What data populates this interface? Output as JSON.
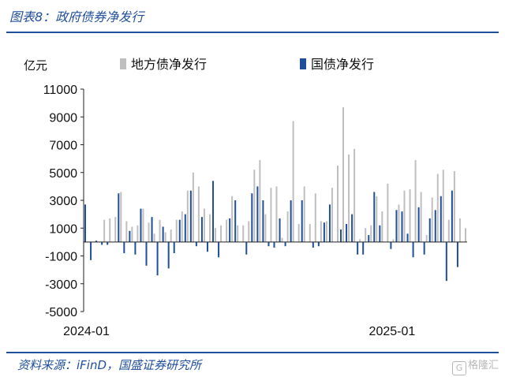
{
  "header": {
    "title": "图表8：政府债券净发行"
  },
  "footer": {
    "source": "资料来源：iFinD，国盛证券研究所",
    "watermark": "格隆汇"
  },
  "colors": {
    "local": "#bfbfbf",
    "national": "#1f4e9a",
    "accent": "#1f4e9a"
  },
  "chart_data": {
    "type": "bar",
    "ylabel": "亿元",
    "ylim": [
      -5000,
      11000
    ],
    "yticks": [
      11000,
      9000,
      7000,
      5000,
      3000,
      1000,
      -1000,
      -3000,
      -5000
    ],
    "xticks": [
      {
        "index": 0,
        "label": "2024-01"
      },
      {
        "index": 55,
        "label": "2025-01"
      }
    ],
    "x_period": "weekly, 2024-01 to 2025-06",
    "legend_position": "top",
    "series": [
      {
        "name": "地方债净发行",
        "color": "#bfbfbf",
        "values": [
          0,
          0,
          0,
          1600,
          1700,
          1800,
          3600,
          1500,
          1100,
          1200,
          2400,
          1400,
          600,
          1600,
          700,
          900,
          1600,
          2200,
          3700,
          5000,
          4000,
          2400,
          2000,
          1000,
          1200,
          1600,
          3300,
          1200,
          1200,
          1500,
          5200,
          5900,
          2000,
          3900,
          4000,
          300,
          2200,
          8700,
          1300,
          4000,
          1300,
          3500,
          1500,
          1500,
          3900,
          5500,
          9700,
          6300,
          6700,
          200,
          1000,
          1200,
          3300,
          2200,
          4200,
          200,
          2700,
          3700,
          3800,
          5900,
          3600,
          500,
          3200,
          4900,
          5200,
          1600,
          5100,
          1700,
          1000
        ]
      },
      {
        "name": "国债净发行",
        "color": "#1f4e9a",
        "values": [
          2700,
          -1300,
          100,
          -200,
          -200,
          0,
          3500,
          -800,
          800,
          -900,
          2400,
          -1700,
          1800,
          -2400,
          1100,
          -1900,
          -800,
          1600,
          2000,
          3700,
          -300,
          1800,
          -700,
          4400,
          -1100,
          0,
          1700,
          3000,
          0,
          -900,
          3500,
          4000,
          3000,
          -300,
          -400,
          1700,
          -300,
          3000,
          0,
          3000,
          0,
          -400,
          -300,
          1400,
          2700,
          0,
          900,
          1300,
          2000,
          -900,
          -900,
          500,
          3600,
          1200,
          0,
          -500,
          2300,
          2200,
          600,
          -1100,
          2500,
          -900,
          1700,
          2300,
          3300,
          -2800,
          3700,
          -1800,
          0
        ]
      }
    ]
  }
}
